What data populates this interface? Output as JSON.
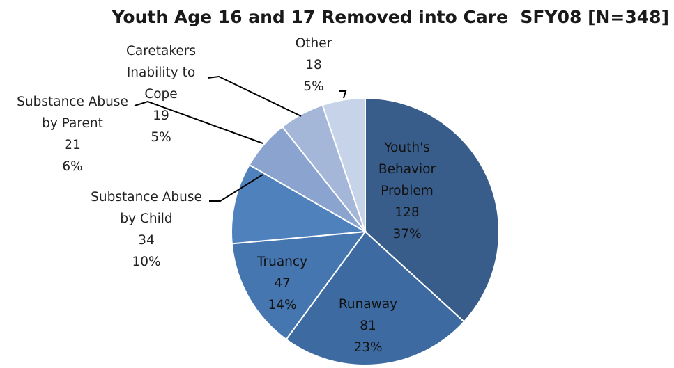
{
  "chart_data": {
    "type": "pie",
    "title": "Youth Age 16 and 17 Removed into Care  SFY08 [N=348]",
    "slices": [
      {
        "label": [
          "Youth's",
          "Behavior",
          "Problem"
        ],
        "value": 128,
        "percent": "37%",
        "color": "#385d8a"
      },
      {
        "label": [
          "Runaway"
        ],
        "value": 81,
        "percent": "23%",
        "color": "#3d6ba1"
      },
      {
        "label": [
          "Truancy"
        ],
        "value": 47,
        "percent": "14%",
        "color": "#4576b0"
      },
      {
        "label": [
          "Substance Abuse",
          "by Child"
        ],
        "value": 34,
        "percent": "10%",
        "color": "#4f81bd"
      },
      {
        "label": [
          "Substance Abuse",
          "by Parent"
        ],
        "value": 21,
        "percent": "6%",
        "color": "#8aa4cf"
      },
      {
        "label": [
          "Caretakers",
          "Inability to",
          "Cope"
        ],
        "value": 19,
        "percent": "5%",
        "color": "#a5b7d9"
      },
      {
        "label": [
          "Other"
        ],
        "value": 18,
        "percent": "5%",
        "color": "#c6d3e8"
      }
    ]
  }
}
